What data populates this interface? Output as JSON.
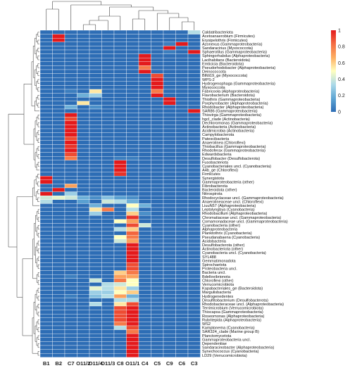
{
  "chart_data": {
    "type": "heatmap",
    "title": "",
    "columns": [
      "B1",
      "B2",
      "C7",
      "O11/2",
      "O11/4",
      "O11/3",
      "C8",
      "O11/1",
      "C4",
      "C5",
      "C9",
      "C6",
      "C3"
    ],
    "rows": [
      "Caldatribacteriota",
      "Acetoanaerobium (Firmicutes)",
      "Erysipelothrix (Firmicutes)",
      "Azonexus (Gammaproteobacteria)",
      "Sandaracinus (Myxococcota)",
      "Sphaerotilus (Gammaproteobacteria)",
      "Sphingorhabdus (Alphaproteobacteria)",
      "Lacihabitans (Bacteroidota)",
      "Emticicia (Bacteroidota)",
      "Pseudorhodobacter (Alphaproteobacteria)",
      "Deinococcota",
      "Blfdi19_ge (Myxococcota)",
      "WPS-2",
      "Hydrogenophaga (Gammaproteobacteria)",
      "Myxococcota",
      "Fabricoola (Alphaproteobacteria)",
      "Flavobacterium (Bacteroidota)",
      "Thiothrix (Gammaproteobacteria)",
      "Porphyrobacter (Alphaproteobacteria)",
      "Rhodobacter (Alphaproteobacteria)",
      "SAR86 (Gammaproteobacteria)",
      "Thiovirga (Gammaproteobacteria)",
      "hgcI_clade (Actinobacteria)",
      "Dechloromonas (Gammaproteobacteria)",
      "Actinobacteria (Actinobacteria)",
      "Acidimicrobia (Actinobacteria)",
      "Campylobacterota",
      "Patescibacteria",
      "Anaerolinea (Chloroflexi)",
      "Thiobacillus (Gammaproteobacteria)",
      "Rhodoferax (Gammaproteobacteria)",
      "Edwardsbacteria",
      "Desulfobacter (Desulfobacterota)",
      "Fusobacteriota",
      "Cyanobacteriales uncl. (Cyanobacteria)",
      "A4b_ge (Chloroflexi)",
      "Firmicutes",
      "Synergistota",
      "Gammaproteobacteria (other)",
      "Fibrobacterota",
      "Bacteroidota (other)",
      "Nitrospirota",
      "Rhodocyclaceae uncl. (Gammaproteobacteria)",
      "Anaerolineaceae uncl. (Chloroflexi)",
      "LiuuN57 (Alphaproteobacteria)",
      "Leptolyngbya (Cyanobacteria)",
      "Rhodobacillum (Alphaproteobacteria)",
      "Chromatiaceae uncl. (Gammaproteobacteria)",
      "Comamonadaceae uncl. (Gammaproteobacteria)",
      "Cyanobacteria (other)",
      "Alphaproteobacteria",
      "Planktothrix (Cyanobacteria)",
      "Pseudanabaena (Cyanobacteria)",
      "Acidobacteria",
      "Desulfobacterota (other)",
      "Actinobacteriota (other)",
      "Cyanobacteria uncl. (Cyanobacteria)",
      "SYL488",
      "Gemmatimonadota",
      "Spirochaetota",
      "Proteobacteria uncl.",
      "Bacteria uncl.",
      "Bdellovibrionota",
      "Chloroflexi (other)",
      "Verrucomicrobiota",
      "Kapabacteriales_ge (Bacteroidota)",
      "Margulisbacteria",
      "Hydrogenedentes",
      "Desulfitobacterium (Desulfobacterota)",
      "Rhodobacteraceae uncl. (Alphaproteobacteria)",
      "Terrimicrobium (Verrucomicrobiota)",
      "Thiocapsa (Gammaproteobacteria)",
      "Roseomonas (Alphaproteobacteria)",
      "Rubritepida (Alphaproteobacteria)",
      "WS2",
      "Kamptonema (Cyanobacteria)",
      "SAR324_clade (Marine group B)",
      "Planctomycetota",
      "Gammaproteobacteria uncl.",
      "Dependentiae",
      "Sandaracinobacter (Alphaproteobacteria)",
      "Synechococcus (Cyanobacteria)",
      "LD29 (Verrucomicrobiota)"
    ],
    "colorbar": {
      "min": 0,
      "max": 1,
      "ticks": [
        0,
        0.2,
        0.4,
        0.6,
        0.8,
        1
      ],
      "tick_labels": [
        "0",
        "0.2",
        "0.4",
        "0.6",
        "0.8",
        "1"
      ],
      "colors": [
        "#2d6db5",
        "#5fa6d4",
        "#abd9e9",
        "#ffffbf",
        "#fdae61",
        "#f46d43",
        "#e31a1c"
      ]
    },
    "values": [
      [
        0,
        0,
        0,
        0,
        0,
        0,
        0,
        0,
        0,
        0,
        0,
        0,
        0.35
      ],
      [
        0,
        1,
        0,
        0,
        0,
        0,
        0,
        0,
        0,
        0,
        0,
        0,
        0
      ],
      [
        0,
        1,
        0,
        0,
        0,
        0,
        0,
        0,
        0,
        0,
        0,
        0,
        0
      ],
      [
        0,
        0,
        0,
        0,
        0,
        0,
        0,
        0,
        0,
        0,
        0.05,
        1,
        0
      ],
      [
        0,
        0,
        0,
        0,
        0,
        0,
        0,
        0,
        0,
        0,
        1,
        0,
        0
      ],
      [
        0,
        0,
        0,
        0,
        0,
        0,
        0,
        0,
        0,
        0,
        0.05,
        0,
        1
      ],
      [
        0,
        0,
        0,
        0,
        0,
        0,
        0,
        0,
        1,
        0,
        0,
        0,
        0
      ],
      [
        0,
        0,
        0,
        0,
        0,
        0,
        0,
        0,
        1,
        0,
        0,
        0,
        0
      ],
      [
        0,
        0,
        0,
        0,
        0,
        0,
        0,
        0,
        1,
        0,
        0,
        0,
        0
      ],
      [
        0,
        0,
        0,
        0,
        0,
        0,
        0,
        0,
        0.8,
        0,
        0,
        0,
        0
      ],
      [
        0,
        0,
        0,
        0,
        0,
        0,
        0,
        0,
        1,
        0,
        0,
        0,
        0
      ],
      [
        0,
        0,
        0,
        0,
        0,
        0,
        0,
        0,
        0,
        0.9,
        0,
        0,
        0
      ],
      [
        0,
        0,
        0,
        0,
        0,
        0,
        0,
        0,
        0,
        1,
        0,
        0,
        0
      ],
      [
        0,
        0,
        0,
        0,
        0,
        0,
        0,
        0,
        0,
        1,
        0,
        0,
        0
      ],
      [
        0,
        0,
        0,
        0,
        0,
        0,
        0,
        0,
        0,
        1,
        0,
        0,
        0
      ],
      [
        0,
        0,
        0.05,
        0,
        0.55,
        0,
        0,
        0,
        0,
        0.8,
        0,
        0,
        0
      ],
      [
        0,
        0,
        0,
        0.2,
        0.3,
        0,
        0,
        0,
        0,
        1,
        0,
        0,
        0
      ],
      [
        0,
        0,
        0,
        0,
        0,
        0,
        0,
        0,
        0,
        0,
        1,
        0,
        0
      ],
      [
        0,
        0,
        0,
        0.55,
        0,
        0,
        0,
        0,
        0,
        0,
        1,
        0,
        0
      ],
      [
        0,
        0,
        0.2,
        0,
        0.1,
        0,
        0,
        0,
        0,
        0,
        0,
        0,
        0
      ],
      [
        0,
        0,
        0,
        0,
        0,
        0,
        0,
        0,
        0,
        0,
        0,
        0,
        1
      ],
      [
        0,
        0,
        1,
        0,
        0,
        0,
        0,
        0,
        0,
        0,
        0,
        0,
        0
      ],
      [
        0,
        0,
        0.9,
        0,
        0,
        0,
        0,
        0,
        0,
        0,
        0,
        0,
        0
      ],
      [
        0,
        0,
        1,
        0,
        0,
        0,
        0,
        0,
        0,
        0,
        0,
        0,
        0
      ],
      [
        0,
        0,
        1,
        0,
        0,
        0,
        0,
        0,
        0,
        0,
        0,
        0,
        0
      ],
      [
        0,
        0,
        1,
        0,
        0,
        0,
        0,
        0,
        0,
        0,
        0,
        0,
        0
      ],
      [
        0,
        0,
        1,
        0,
        0,
        0,
        0,
        0,
        0,
        0,
        0,
        0,
        0
      ],
      [
        0,
        0,
        0.9,
        0,
        0,
        0,
        0,
        0,
        0,
        0,
        0,
        0,
        0
      ],
      [
        0,
        0,
        1,
        0,
        0,
        0,
        0,
        0,
        0,
        0,
        0,
        0,
        0
      ],
      [
        0,
        0,
        0.95,
        0,
        0,
        0,
        0,
        0,
        0,
        0,
        0,
        0,
        0
      ],
      [
        0,
        0,
        1,
        0,
        0,
        0,
        0,
        0,
        0,
        0,
        0,
        0,
        0
      ],
      [
        0,
        0,
        0.9,
        0,
        0,
        0,
        0,
        0,
        0,
        0,
        0,
        0,
        0
      ],
      [
        0,
        0,
        0.8,
        0,
        0,
        0,
        0.05,
        0.05,
        0,
        0,
        0,
        0,
        0
      ],
      [
        0,
        0,
        0,
        0,
        0,
        0,
        1,
        0,
        0,
        0,
        0,
        0,
        0
      ],
      [
        0,
        0,
        0,
        0,
        0,
        0,
        1,
        0,
        0,
        0,
        0,
        0,
        0
      ],
      [
        0,
        0,
        0,
        0,
        0,
        0,
        1,
        0,
        0,
        0,
        0,
        0,
        0
      ],
      [
        0,
        0,
        0,
        0,
        0,
        0,
        0.95,
        0,
        0,
        0,
        0,
        0,
        0
      ],
      [
        1,
        0,
        0,
        0,
        0,
        0,
        0,
        0,
        0,
        0,
        0,
        0,
        0
      ],
      [
        1,
        0,
        0,
        0,
        0,
        0,
        0,
        0,
        0,
        0,
        0,
        0,
        0
      ],
      [
        0,
        0,
        0.7,
        0,
        0,
        0,
        0,
        0,
        0,
        0,
        0,
        0,
        0
      ],
      [
        0,
        1,
        0,
        0,
        0,
        0,
        0,
        0,
        0,
        0,
        0,
        0,
        0
      ],
      [
        1,
        0,
        0.3,
        0,
        0,
        0,
        0,
        0,
        0,
        0,
        0,
        0,
        0
      ],
      [
        0.4,
        0.45,
        0.4,
        0.2,
        0.1,
        0.25,
        0.15,
        0.1,
        0,
        0,
        0,
        0,
        0
      ],
      [
        0.35,
        0,
        0,
        0.15,
        0,
        0.4,
        0.35,
        0.2,
        0,
        0,
        0,
        0,
        0
      ],
      [
        0,
        0,
        0,
        0,
        0.2,
        0,
        0,
        0.5,
        0.2,
        0,
        0,
        0,
        0
      ],
      [
        0,
        0,
        0,
        0,
        0.55,
        0.8,
        0,
        0.35,
        0,
        0,
        0,
        0,
        0
      ],
      [
        0,
        0,
        0,
        0,
        0.3,
        0,
        0,
        0.6,
        0.1,
        0,
        0,
        0,
        0
      ],
      [
        0,
        0,
        0,
        0,
        0,
        0,
        0,
        0.95,
        0,
        0,
        0,
        0,
        0
      ],
      [
        0,
        0,
        0,
        0,
        0,
        0,
        0.5,
        0.7,
        0,
        0,
        0,
        0,
        0
      ],
      [
        0,
        0,
        0,
        0,
        0,
        0,
        0,
        0.9,
        0.4,
        0,
        0,
        0,
        0
      ],
      [
        0,
        0,
        0,
        0,
        0,
        0,
        0.35,
        0.6,
        0,
        0,
        0,
        0,
        0
      ],
      [
        0,
        0,
        0,
        0,
        0,
        0,
        0,
        0.85,
        0,
        0,
        0,
        0,
        0
      ],
      [
        0,
        0,
        0,
        0,
        0,
        0,
        0.5,
        0.8,
        0,
        0,
        0,
        0,
        0
      ],
      [
        0,
        0,
        0,
        0,
        0,
        0,
        0.4,
        0.7,
        0,
        0,
        0,
        0,
        0
      ],
      [
        0,
        0,
        0,
        0,
        0,
        0,
        0,
        1,
        0,
        0,
        0,
        0,
        0
      ],
      [
        0,
        0,
        0,
        0,
        0,
        0,
        0,
        1,
        0,
        0,
        0,
        0,
        0
      ],
      [
        0,
        0,
        0,
        0,
        0,
        0,
        0,
        1,
        0,
        0,
        0,
        0,
        0
      ],
      [
        0,
        0,
        0,
        0,
        0,
        0,
        0,
        1,
        0,
        0,
        0,
        0,
        0
      ],
      [
        0,
        0,
        0,
        0,
        0,
        0,
        0,
        1,
        0,
        0,
        0,
        0,
        0
      ],
      [
        0,
        0,
        0,
        0,
        0,
        0,
        0,
        0.9,
        0,
        0,
        0,
        0,
        0
      ],
      [
        0,
        0,
        0,
        0,
        0,
        0,
        0,
        0.9,
        0,
        0,
        0,
        0,
        0
      ],
      [
        0,
        0,
        0,
        0,
        0,
        0,
        0.6,
        0.8,
        0,
        0,
        0,
        0,
        0
      ],
      [
        0,
        0,
        0.05,
        0,
        0,
        0,
        0.7,
        0.7,
        0,
        0,
        0,
        0,
        0
      ],
      [
        0,
        0,
        0,
        0,
        0.4,
        0,
        0.8,
        0.5,
        0,
        0,
        0,
        0,
        0
      ],
      [
        0,
        0,
        0,
        0,
        0,
        0.35,
        0.4,
        0.5,
        0,
        0,
        0,
        0,
        0
      ],
      [
        0,
        0,
        0,
        0,
        0.45,
        0.35,
        0.55,
        0.3,
        0,
        0,
        0,
        0,
        0
      ],
      [
        0,
        0,
        0,
        0,
        0.3,
        0.3,
        0.5,
        0.6,
        0,
        0,
        0,
        0,
        0
      ],
      [
        0,
        0,
        0.05,
        0,
        0.25,
        0.35,
        0.7,
        0.2,
        0,
        0,
        0,
        0,
        0
      ],
      [
        0,
        0,
        0,
        0,
        0,
        0,
        0.35,
        0.35,
        0,
        0,
        0,
        0,
        0
      ],
      [
        0,
        0,
        0,
        0,
        0.35,
        0,
        0.55,
        0.9,
        0,
        0,
        0,
        0,
        0
      ],
      [
        0,
        0,
        0,
        0,
        0,
        0,
        0.9,
        1,
        0,
        0,
        0,
        0,
        0
      ],
      [
        0,
        0,
        0,
        0,
        0,
        0,
        0.9,
        1,
        0,
        0,
        0,
        0,
        0
      ],
      [
        0,
        0,
        0,
        0,
        0,
        0,
        0.9,
        1,
        0,
        0,
        0,
        0,
        0
      ],
      [
        0,
        0,
        0,
        0,
        0,
        0,
        0.9,
        1,
        0,
        0,
        0,
        0,
        0
      ],
      [
        0,
        0,
        0,
        0,
        0,
        0,
        0.8,
        1,
        0,
        0,
        0,
        0,
        0
      ],
      [
        0,
        0,
        0,
        0,
        0,
        0,
        0.35,
        0.9,
        0,
        0,
        0,
        0,
        0
      ],
      [
        0,
        0,
        0,
        0,
        0,
        0,
        0,
        0.8,
        0,
        0,
        0,
        0,
        0
      ],
      [
        0,
        0,
        0,
        0,
        0,
        0,
        0,
        1,
        0,
        0,
        0,
        0,
        0
      ],
      [
        0,
        0,
        0,
        0,
        0,
        0,
        0,
        1,
        0,
        0,
        0,
        0,
        0
      ],
      [
        0,
        0,
        0,
        0,
        0,
        0,
        0,
        1,
        0,
        0,
        0,
        0,
        0
      ],
      [
        0,
        0,
        0,
        0,
        0,
        0,
        0,
        1,
        0,
        0,
        0,
        0,
        0
      ],
      [
        0,
        0,
        0,
        0,
        0,
        0,
        0,
        1,
        0,
        0,
        0,
        0,
        0
      ],
      [
        0,
        0,
        0,
        0,
        0,
        0,
        0,
        1,
        0,
        0,
        0,
        0,
        0
      ]
    ]
  }
}
